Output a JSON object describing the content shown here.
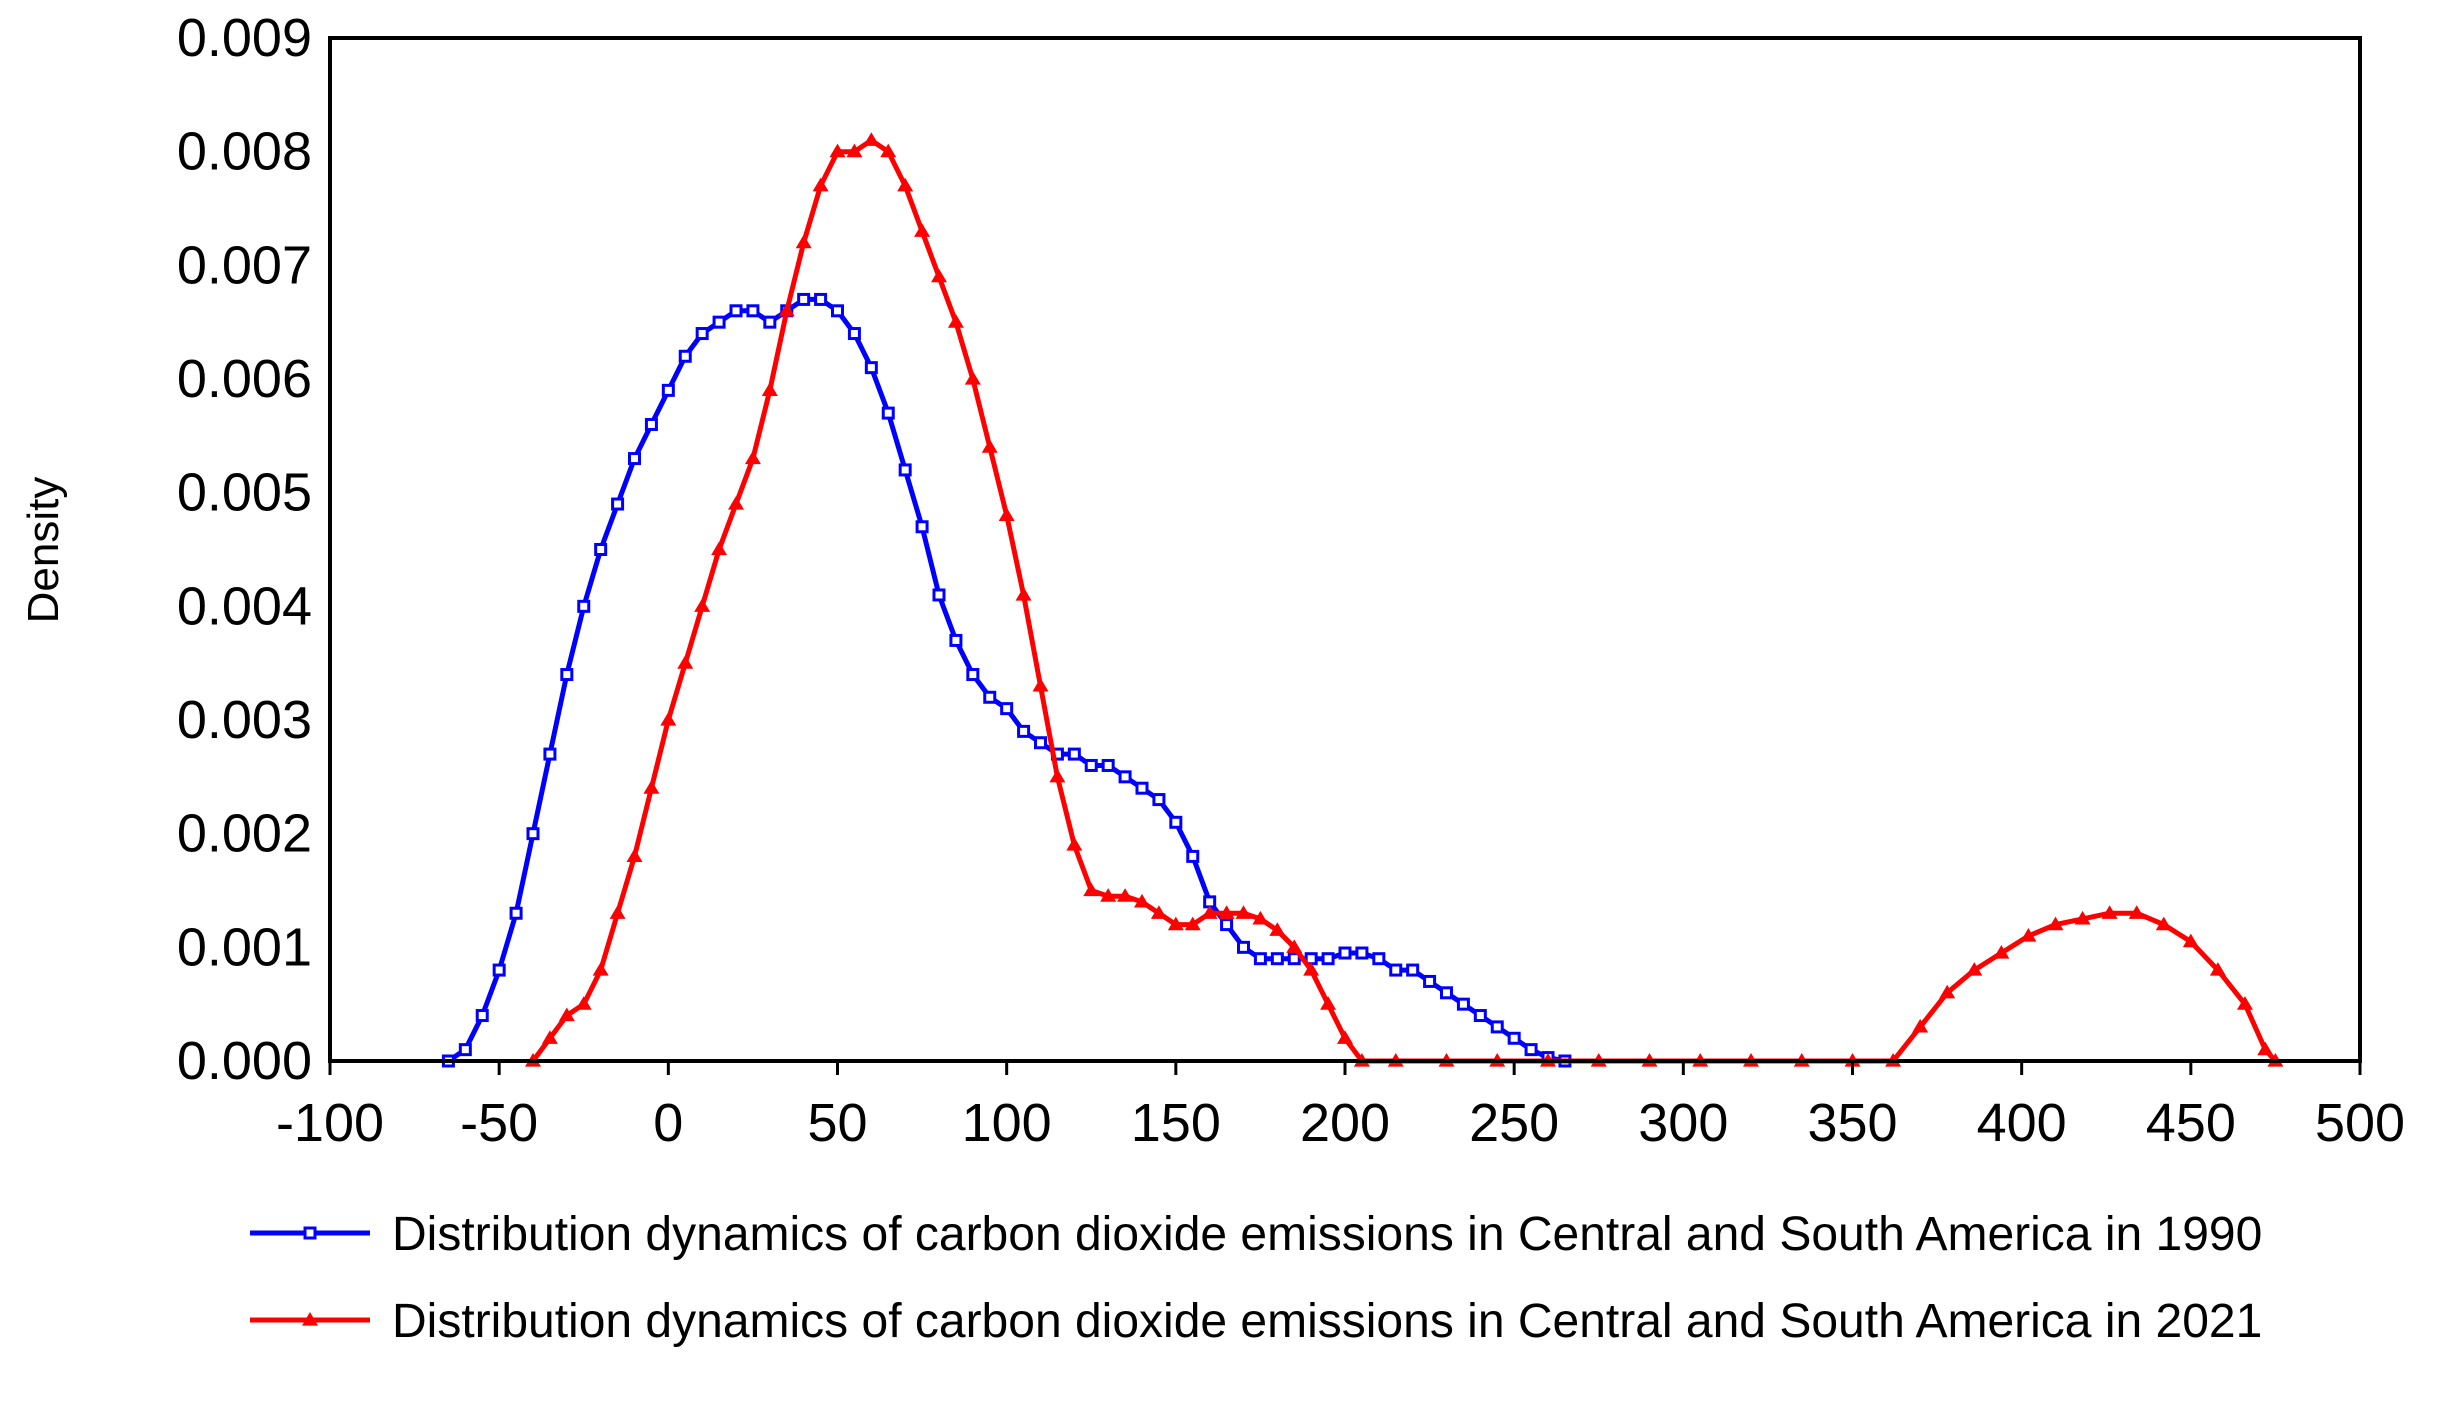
{
  "chart_data": {
    "type": "line",
    "title": "",
    "xlabel": "",
    "ylabel": "Density",
    "xlim": [
      -100,
      500
    ],
    "ylim": [
      0,
      0.009
    ],
    "x_ticks": [
      -100,
      -50,
      0,
      50,
      100,
      150,
      200,
      250,
      300,
      350,
      400,
      450,
      500
    ],
    "x_tick_labels": [
      "-100",
      "-50",
      "0",
      "50",
      "100",
      "150",
      "200",
      "250",
      "300",
      "350",
      "400",
      "450",
      "500"
    ],
    "y_ticks": [
      0,
      0.001,
      0.002,
      0.003,
      0.004,
      0.005,
      0.006,
      0.007,
      0.008,
      0.009
    ],
    "y_tick_labels": [
      "0.000",
      "0.001",
      "0.002",
      "0.003",
      "0.004",
      "0.005",
      "0.006",
      "0.007",
      "0.008",
      "0.009"
    ],
    "grid": false,
    "legend_position": "bottom",
    "series": [
      {
        "name": "Distribution dynamics of carbon dioxide emissions in Central and South America in 1990",
        "color": "#0000ff",
        "marker": "star",
        "points": [
          [
            -65,
            0.0
          ],
          [
            -60,
            0.0001
          ],
          [
            -55,
            0.0004
          ],
          [
            -50,
            0.0008
          ],
          [
            -45,
            0.0013
          ],
          [
            -40,
            0.002
          ],
          [
            -35,
            0.0027
          ],
          [
            -30,
            0.0034
          ],
          [
            -25,
            0.004
          ],
          [
            -20,
            0.0045
          ],
          [
            -15,
            0.0049
          ],
          [
            -10,
            0.0053
          ],
          [
            -5,
            0.0056
          ],
          [
            0,
            0.0059
          ],
          [
            5,
            0.0062
          ],
          [
            10,
            0.0064
          ],
          [
            15,
            0.0065
          ],
          [
            20,
            0.0066
          ],
          [
            25,
            0.0066
          ],
          [
            30,
            0.0065
          ],
          [
            35,
            0.0066
          ],
          [
            40,
            0.0067
          ],
          [
            45,
            0.0067
          ],
          [
            50,
            0.0066
          ],
          [
            55,
            0.0064
          ],
          [
            60,
            0.0061
          ],
          [
            65,
            0.0057
          ],
          [
            70,
            0.0052
          ],
          [
            75,
            0.0047
          ],
          [
            80,
            0.0041
          ],
          [
            85,
            0.0037
          ],
          [
            90,
            0.0034
          ],
          [
            95,
            0.0032
          ],
          [
            100,
            0.0031
          ],
          [
            105,
            0.0029
          ],
          [
            110,
            0.0028
          ],
          [
            115,
            0.0027
          ],
          [
            120,
            0.0027
          ],
          [
            125,
            0.0026
          ],
          [
            130,
            0.0026
          ],
          [
            135,
            0.0025
          ],
          [
            140,
            0.0024
          ],
          [
            145,
            0.0023
          ],
          [
            150,
            0.0021
          ],
          [
            155,
            0.0018
          ],
          [
            160,
            0.0014
          ],
          [
            165,
            0.0012
          ],
          [
            170,
            0.001
          ],
          [
            175,
            0.0009
          ],
          [
            180,
            0.0009
          ],
          [
            185,
            0.0009
          ],
          [
            190,
            0.0009
          ],
          [
            195,
            0.0009
          ],
          [
            200,
            0.00095
          ],
          [
            205,
            0.00095
          ],
          [
            210,
            0.0009
          ],
          [
            215,
            0.0008
          ],
          [
            220,
            0.0008
          ],
          [
            225,
            0.0007
          ],
          [
            230,
            0.0006
          ],
          [
            235,
            0.0005
          ],
          [
            240,
            0.0004
          ],
          [
            245,
            0.0003
          ],
          [
            250,
            0.0002
          ],
          [
            255,
            0.0001
          ],
          [
            260,
            3e-05
          ],
          [
            265,
            0.0
          ]
        ]
      },
      {
        "name": "Distribution dynamics of carbon dioxide emissions in Central and South America in 2021",
        "color": "#ff0000",
        "marker": "triangle",
        "points": [
          [
            -40,
            0.0
          ],
          [
            -35,
            0.0002
          ],
          [
            -30,
            0.0004
          ],
          [
            -25,
            0.0005
          ],
          [
            -20,
            0.0008
          ],
          [
            -15,
            0.0013
          ],
          [
            -10,
            0.0018
          ],
          [
            -5,
            0.0024
          ],
          [
            0,
            0.003
          ],
          [
            5,
            0.0035
          ],
          [
            10,
            0.004
          ],
          [
            15,
            0.0045
          ],
          [
            20,
            0.0049
          ],
          [
            25,
            0.0053
          ],
          [
            30,
            0.0059
          ],
          [
            35,
            0.0066
          ],
          [
            40,
            0.0072
          ],
          [
            45,
            0.0077
          ],
          [
            50,
            0.008
          ],
          [
            55,
            0.008
          ],
          [
            60,
            0.0081
          ],
          [
            65,
            0.008
          ],
          [
            70,
            0.0077
          ],
          [
            75,
            0.0073
          ],
          [
            80,
            0.0069
          ],
          [
            85,
            0.0065
          ],
          [
            90,
            0.006
          ],
          [
            95,
            0.0054
          ],
          [
            100,
            0.0048
          ],
          [
            105,
            0.0041
          ],
          [
            110,
            0.0033
          ],
          [
            115,
            0.0025
          ],
          [
            120,
            0.0019
          ],
          [
            125,
            0.0015
          ],
          [
            130,
            0.00145
          ],
          [
            135,
            0.00145
          ],
          [
            140,
            0.0014
          ],
          [
            145,
            0.0013
          ],
          [
            150,
            0.0012
          ],
          [
            155,
            0.0012
          ],
          [
            160,
            0.0013
          ],
          [
            165,
            0.0013
          ],
          [
            170,
            0.0013
          ],
          [
            175,
            0.00125
          ],
          [
            180,
            0.00115
          ],
          [
            185,
            0.001
          ],
          [
            190,
            0.0008
          ],
          [
            195,
            0.0005
          ],
          [
            200,
            0.0002
          ],
          [
            205,
            0.0
          ],
          [
            215,
            0.0
          ],
          [
            230,
            0.0
          ],
          [
            245,
            0.0
          ],
          [
            260,
            0.0
          ],
          [
            275,
            0.0
          ],
          [
            290,
            0.0
          ],
          [
            305,
            0.0
          ],
          [
            320,
            0.0
          ],
          [
            335,
            0.0
          ],
          [
            350,
            0.0
          ],
          [
            362,
            0.0
          ],
          [
            370,
            0.0003
          ],
          [
            378,
            0.0006
          ],
          [
            386,
            0.0008
          ],
          [
            394,
            0.00095
          ],
          [
            402,
            0.0011
          ],
          [
            410,
            0.0012
          ],
          [
            418,
            0.00125
          ],
          [
            426,
            0.0013
          ],
          [
            434,
            0.0013
          ],
          [
            442,
            0.0012
          ],
          [
            450,
            0.00105
          ],
          [
            458,
            0.0008
          ],
          [
            466,
            0.0005
          ],
          [
            472,
            0.0001
          ],
          [
            475,
            0.0
          ]
        ]
      }
    ]
  }
}
